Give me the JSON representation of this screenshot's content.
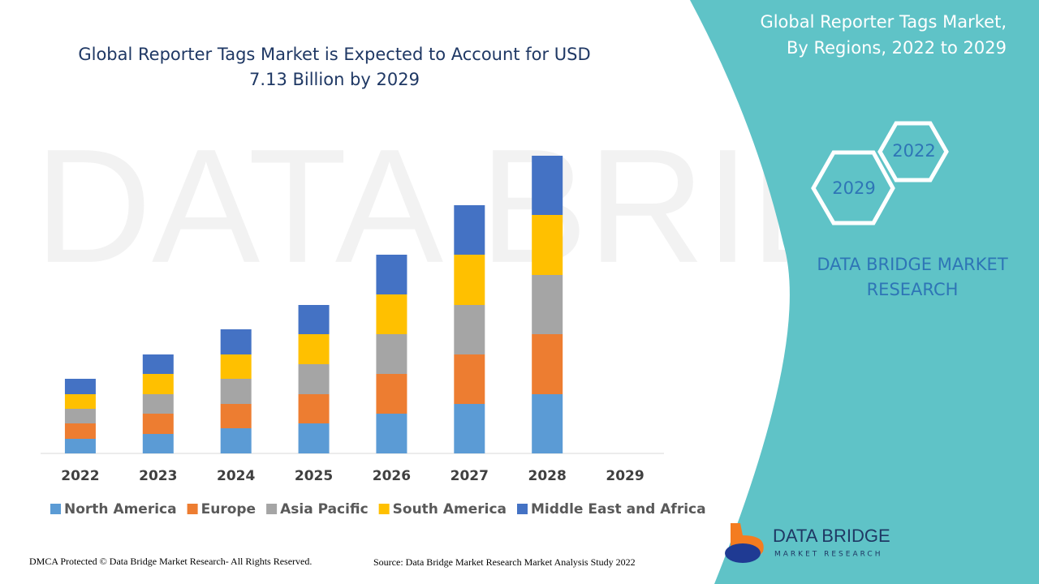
{
  "chart_data": {
    "type": "stacked-bar",
    "title": [
      "Global Reporter Tags Market is Expected to Account for USD",
      "7.13 Billion by 2029"
    ],
    "categories": [
      "2022",
      "2023",
      "2024",
      "2025",
      "2026",
      "2027",
      "2028",
      "2029"
    ],
    "series": [
      {
        "name": "North America",
        "color": "#5b9bd5",
        "values": [
          18,
          24,
          31,
          37,
          49,
          61,
          73,
          null
        ]
      },
      {
        "name": "Europe",
        "color": "#ed7d31",
        "values": [
          19,
          25,
          30,
          36,
          49,
          61,
          74,
          null
        ]
      },
      {
        "name": "Asia Pacific",
        "color": "#a5a5a5",
        "values": [
          18,
          24,
          31,
          37,
          49,
          61,
          73,
          null
        ]
      },
      {
        "name": "South America",
        "color": "#ffc000",
        "values": [
          18,
          25,
          30,
          37,
          49,
          62,
          74,
          null
        ]
      },
      {
        "name": "Middle East and Africa",
        "color": "#4472c4",
        "values": [
          19,
          24,
          31,
          36,
          49,
          61,
          73,
          null
        ]
      }
    ],
    "legend": "bottom"
  },
  "side_panel": {
    "title": [
      "Global Reporter Tags Market,",
      "By Regions, 2022 to 2029"
    ],
    "hex_labels": [
      "2022",
      "2029"
    ],
    "brand": [
      "DATA BRIDGE MARKET",
      "RESEARCH"
    ]
  },
  "logo": {
    "name": "DATA BRIDGE",
    "tagline": "MARKET RESEARCH"
  },
  "footer": {
    "copyright": "DMCA Protected © Data Bridge Market Research- All Rights Reserved.",
    "source": "Source: Data Bridge Market Research Market Analysis Study 2022"
  }
}
